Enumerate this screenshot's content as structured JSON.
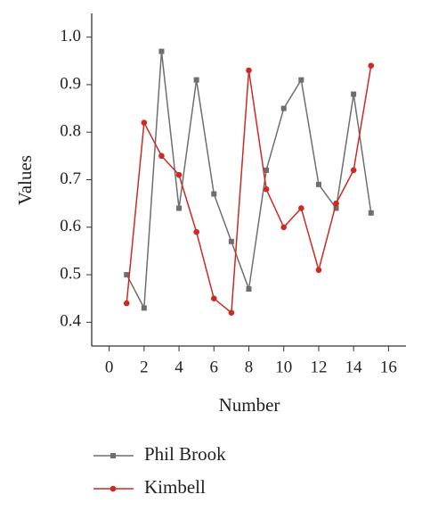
{
  "chart_data": {
    "type": "line",
    "x_label": "Number",
    "y_label": "Values",
    "x": [
      1,
      2,
      3,
      4,
      5,
      6,
      7,
      8,
      9,
      10,
      11,
      12,
      13,
      14,
      15
    ],
    "series": [
      {
        "name": "Phil Brook",
        "color": "#6e6e6e",
        "marker": "square",
        "values": [
          0.5,
          0.43,
          0.97,
          0.64,
          0.91,
          0.67,
          0.57,
          0.47,
          0.72,
          0.85,
          0.91,
          0.69,
          0.64,
          0.88,
          0.63
        ]
      },
      {
        "name": "Kimbell",
        "color": "#cc2a22",
        "marker": "circle",
        "values": [
          0.44,
          0.82,
          0.75,
          0.71,
          0.59,
          0.45,
          0.42,
          0.93,
          0.68,
          0.6,
          0.64,
          0.51,
          0.65,
          0.72,
          0.94
        ]
      }
    ],
    "xlim": [
      -1,
      17
    ],
    "xticks": [
      0,
      2,
      4,
      6,
      8,
      10,
      12,
      14,
      16
    ],
    "ylim": [
      0.35,
      1.05
    ],
    "yticks": [
      0.4,
      0.5,
      0.6,
      0.7,
      0.8,
      0.9,
      {
        "value": 1,
        "label": "1.0"
      }
    ],
    "grid": false,
    "legend": "below"
  }
}
